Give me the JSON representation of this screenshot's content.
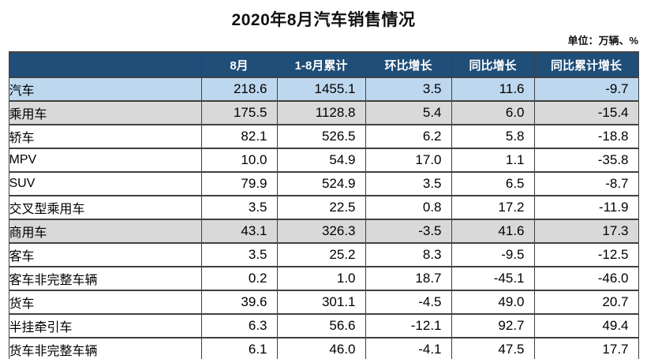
{
  "page": {
    "title": "2020年8月汽车销售情况",
    "unit_label": "单位：万辆、%"
  },
  "colors": {
    "header_bg": "#1F4E79",
    "header_text": "#FFFFFF",
    "total_row_bg": "#BDD7EE",
    "section_row_bg": "#D9D9D9",
    "grid_border": "#404040"
  },
  "chart_data": {
    "type": "table",
    "title": "2020年8月汽车销售情况",
    "unit": "万辆、%",
    "columns": [
      "",
      "8月",
      "1-8月累计",
      "环比增长",
      "同比增长",
      "同比累计增长"
    ],
    "rows": [
      {
        "label": "汽车",
        "indent": 0,
        "highlight": "blue",
        "values": [
          "218.6",
          "1455.1",
          "3.5",
          "11.6",
          "-9.7"
        ]
      },
      {
        "label": "乘用车",
        "indent": 1,
        "highlight": "gray",
        "values": [
          "175.5",
          "1128.8",
          "5.4",
          "6.0",
          "-15.4"
        ]
      },
      {
        "label": "轿车",
        "indent": 2,
        "highlight": "none",
        "values": [
          "82.1",
          "526.5",
          "6.2",
          "5.8",
          "-18.8"
        ]
      },
      {
        "label": "MPV",
        "indent": 2,
        "highlight": "none",
        "values": [
          "10.0",
          "54.9",
          "17.0",
          "1.1",
          "-35.8"
        ]
      },
      {
        "label": "SUV",
        "indent": 2,
        "highlight": "none",
        "values": [
          "79.9",
          "524.9",
          "3.5",
          "6.5",
          "-8.7"
        ]
      },
      {
        "label": "交叉型乘用车",
        "indent": 2,
        "highlight": "none",
        "values": [
          "3.5",
          "22.5",
          "0.8",
          "17.2",
          "-11.9"
        ]
      },
      {
        "label": "商用车",
        "indent": 1,
        "highlight": "gray",
        "values": [
          "43.1",
          "326.3",
          "-3.5",
          "41.6",
          "17.3"
        ]
      },
      {
        "label": "客车",
        "indent": 2,
        "highlight": "none",
        "values": [
          "3.5",
          "25.2",
          "8.3",
          "-9.5",
          "-12.5"
        ]
      },
      {
        "label": "客车非完整车辆",
        "indent": 3,
        "highlight": "none",
        "values": [
          "0.2",
          "1.0",
          "18.7",
          "-45.1",
          "-46.0"
        ]
      },
      {
        "label": "货车",
        "indent": 2,
        "highlight": "none",
        "values": [
          "39.6",
          "301.1",
          "-4.5",
          "49.0",
          "20.7"
        ]
      },
      {
        "label": "半挂牵引车",
        "indent": 3,
        "highlight": "none",
        "values": [
          "6.3",
          "56.6",
          "-12.1",
          "92.7",
          "49.4"
        ]
      },
      {
        "label": "货车非完整车辆",
        "indent": 3,
        "highlight": "none",
        "values": [
          "6.1",
          "46.0",
          "-4.1",
          "47.5",
          "17.7"
        ]
      }
    ]
  }
}
